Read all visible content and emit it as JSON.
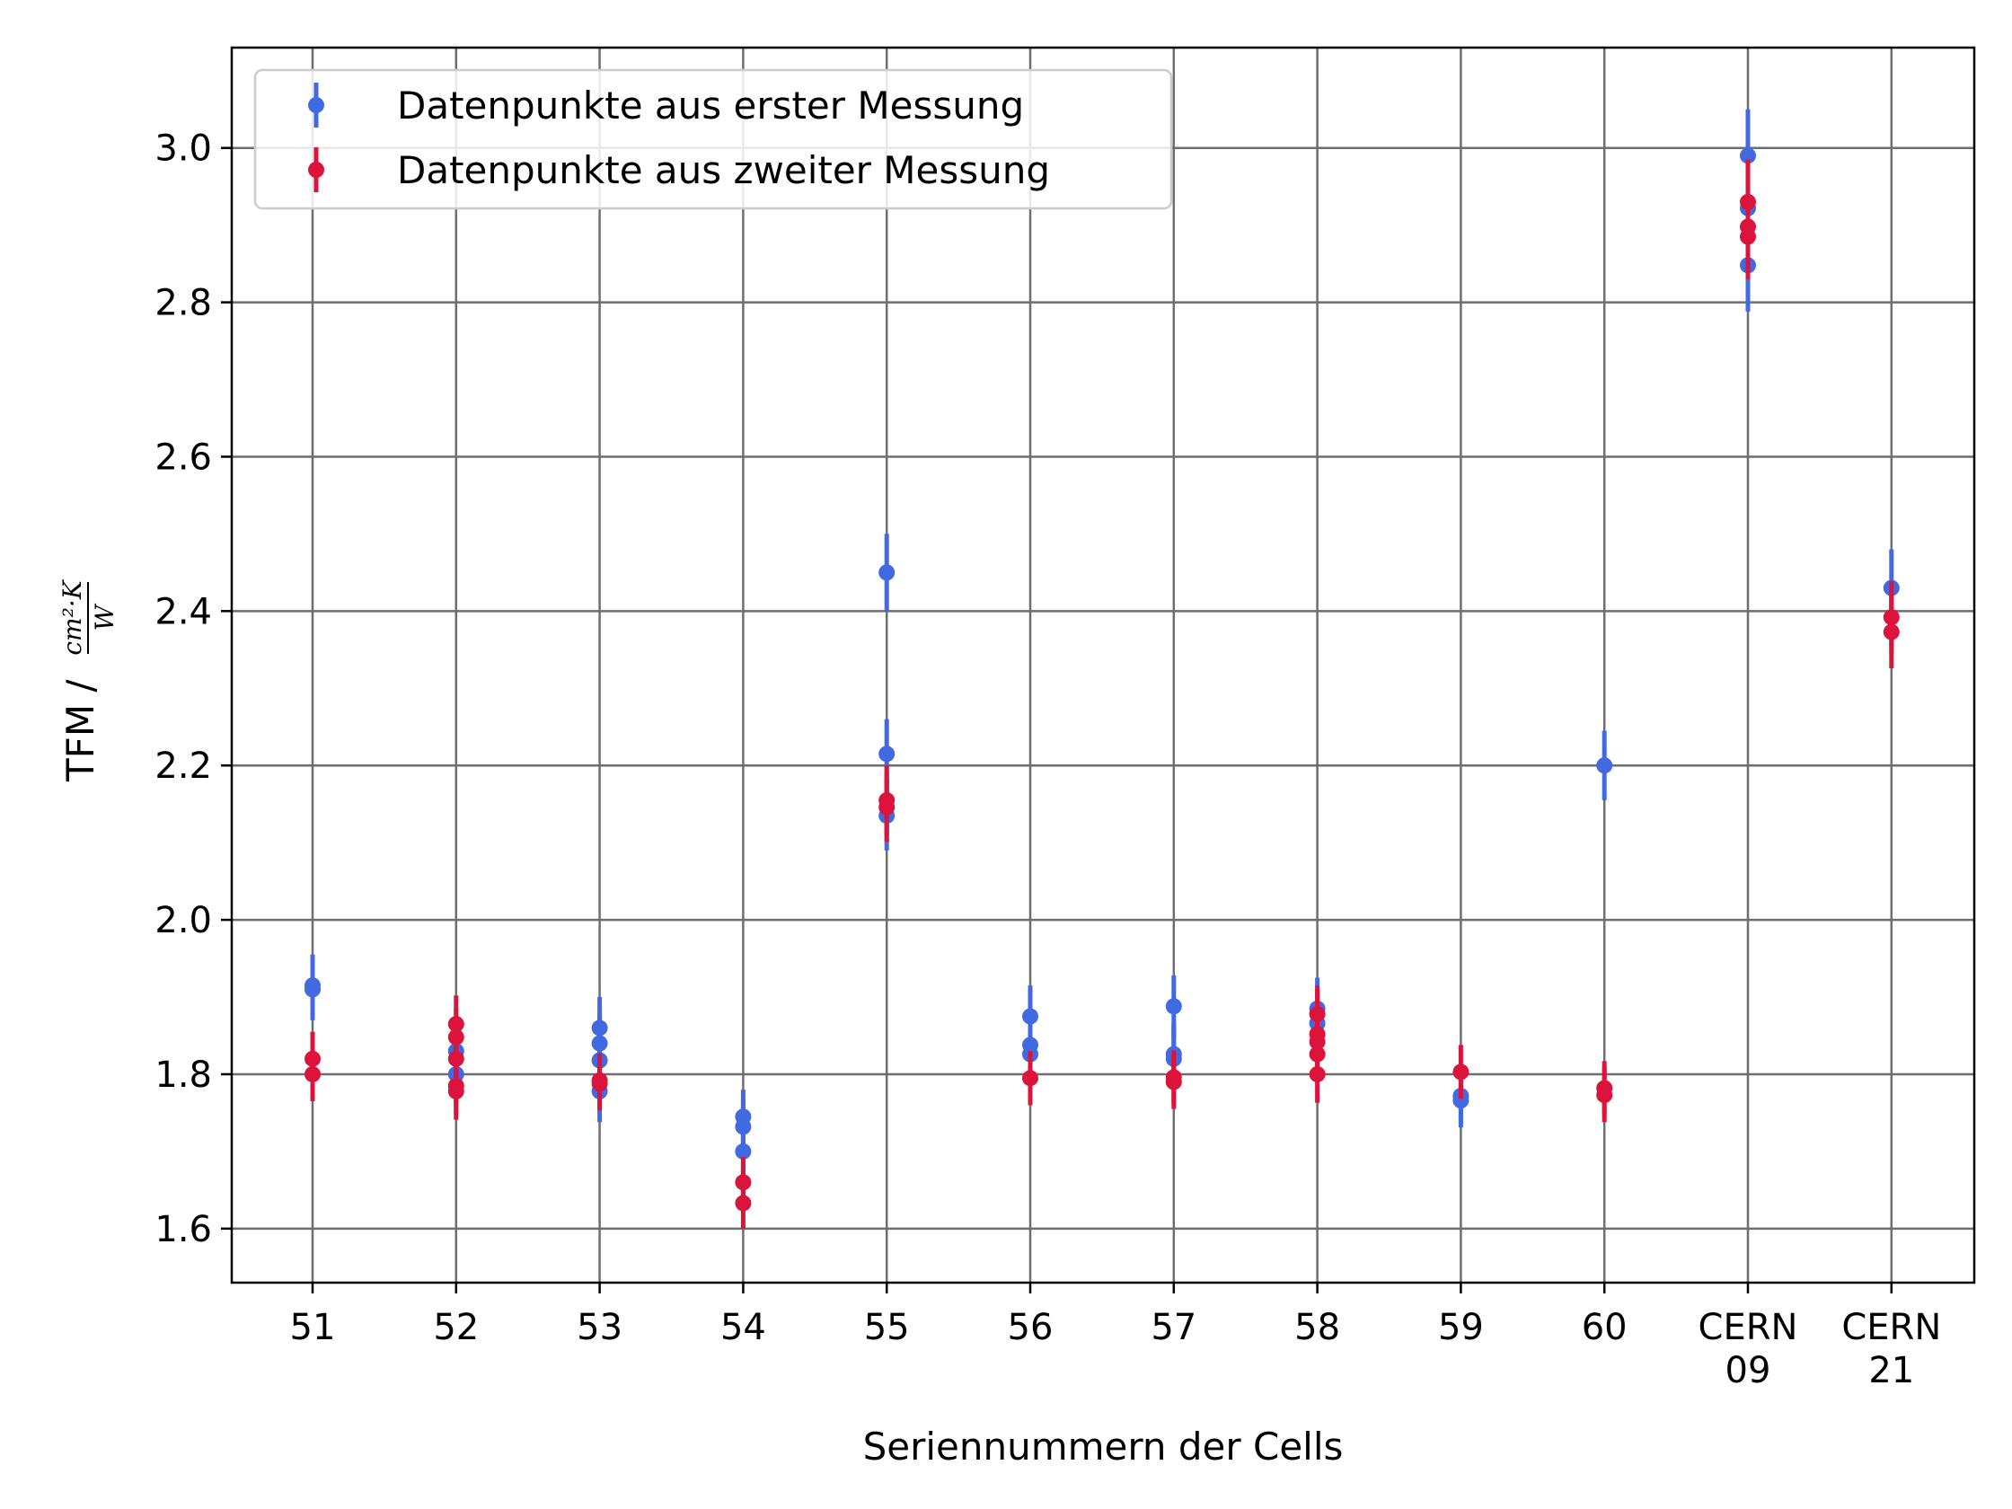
{
  "chart_data": {
    "type": "scatter",
    "xlabel": "Seriennummern der Cells",
    "ylabel": "TFM /",
    "ylabel_unit": {
      "numerator": "cm²·K",
      "denominator": "W"
    },
    "categories": [
      [
        "51"
      ],
      [
        "52"
      ],
      [
        "53"
      ],
      [
        "54"
      ],
      [
        "55"
      ],
      [
        "56"
      ],
      [
        "57"
      ],
      [
        "58"
      ],
      [
        "59"
      ],
      [
        "60"
      ],
      [
        "CERN",
        "09"
      ],
      [
        "CERN",
        "21"
      ]
    ],
    "ylim": [
      1.53,
      3.13
    ],
    "yticks": [
      "1.6",
      "1.8",
      "2.0",
      "2.2",
      "2.4",
      "2.6",
      "2.8",
      "3.0"
    ],
    "grid": true,
    "legend_position": "upper-left",
    "series": [
      {
        "name": "Datenpunkte aus erster Messung",
        "color": "#4169e1",
        "points": [
          {
            "x": 0,
            "y": 1.91,
            "err": 0.04
          },
          {
            "x": 0,
            "y": 1.915,
            "err": 0.04
          },
          {
            "x": 1,
            "y": 1.83,
            "err": 0.04
          },
          {
            "x": 1,
            "y": 1.8,
            "err": 0.04
          },
          {
            "x": 2,
            "y": 1.86,
            "err": 0.04
          },
          {
            "x": 2,
            "y": 1.84,
            "err": 0.04
          },
          {
            "x": 2,
            "y": 1.818,
            "err": 0.04
          },
          {
            "x": 2,
            "y": 1.778,
            "err": 0.04
          },
          {
            "x": 3,
            "y": 1.745,
            "err": 0.035
          },
          {
            "x": 3,
            "y": 1.732,
            "err": 0.035
          },
          {
            "x": 3,
            "y": 1.7,
            "err": 0.035
          },
          {
            "x": 4,
            "y": 2.45,
            "err": 0.05
          },
          {
            "x": 4,
            "y": 2.215,
            "err": 0.045
          },
          {
            "x": 4,
            "y": 2.135,
            "err": 0.045
          },
          {
            "x": 5,
            "y": 1.875,
            "err": 0.04
          },
          {
            "x": 5,
            "y": 1.838,
            "err": 0.04
          },
          {
            "x": 5,
            "y": 1.826,
            "err": 0.04
          },
          {
            "x": 6,
            "y": 1.888,
            "err": 0.04
          },
          {
            "x": 6,
            "y": 1.826,
            "err": 0.04
          },
          {
            "x": 6,
            "y": 1.82,
            "err": 0.04
          },
          {
            "x": 7,
            "y": 1.885,
            "err": 0.04
          },
          {
            "x": 7,
            "y": 1.866,
            "err": 0.04
          },
          {
            "x": 8,
            "y": 1.772,
            "err": 0.035
          },
          {
            "x": 8,
            "y": 1.766,
            "err": 0.035
          },
          {
            "x": 9,
            "y": 2.2,
            "err": 0.045
          },
          {
            "x": 10,
            "y": 2.99,
            "err": 0.06
          },
          {
            "x": 10,
            "y": 2.922,
            "err": 0.06
          },
          {
            "x": 10,
            "y": 2.848,
            "err": 0.06
          },
          {
            "x": 11,
            "y": 2.43,
            "err": 0.05
          }
        ]
      },
      {
        "name": "Datenpunkte aus zweiter Messung",
        "color": "#dc143c",
        "points": [
          {
            "x": 0,
            "y": 1.82,
            "err": 0.035
          },
          {
            "x": 0,
            "y": 1.8,
            "err": 0.035
          },
          {
            "x": 1,
            "y": 1.865,
            "err": 0.037
          },
          {
            "x": 1,
            "y": 1.848,
            "err": 0.037
          },
          {
            "x": 1,
            "y": 1.82,
            "err": 0.037
          },
          {
            "x": 1,
            "y": 1.785,
            "err": 0.037
          },
          {
            "x": 1,
            "y": 1.778,
            "err": 0.037
          },
          {
            "x": 2,
            "y": 1.792,
            "err": 0.035
          },
          {
            "x": 2,
            "y": 1.788,
            "err": 0.035
          },
          {
            "x": 3,
            "y": 1.66,
            "err": 0.033
          },
          {
            "x": 3,
            "y": 1.633,
            "err": 0.033
          },
          {
            "x": 4,
            "y": 2.155,
            "err": 0.045
          },
          {
            "x": 4,
            "y": 2.146,
            "err": 0.045
          },
          {
            "x": 5,
            "y": 1.795,
            "err": 0.035
          },
          {
            "x": 6,
            "y": 1.796,
            "err": 0.035
          },
          {
            "x": 6,
            "y": 1.79,
            "err": 0.035
          },
          {
            "x": 7,
            "y": 1.878,
            "err": 0.037
          },
          {
            "x": 7,
            "y": 1.852,
            "err": 0.037
          },
          {
            "x": 7,
            "y": 1.842,
            "err": 0.037
          },
          {
            "x": 7,
            "y": 1.826,
            "err": 0.037
          },
          {
            "x": 7,
            "y": 1.8,
            "err": 0.037
          },
          {
            "x": 8,
            "y": 1.803,
            "err": 0.035
          },
          {
            "x": 9,
            "y": 1.782,
            "err": 0.035
          },
          {
            "x": 9,
            "y": 1.773,
            "err": 0.035
          },
          {
            "x": 10,
            "y": 2.93,
            "err": 0.055
          },
          {
            "x": 10,
            "y": 2.898,
            "err": 0.055
          },
          {
            "x": 10,
            "y": 2.885,
            "err": 0.055
          },
          {
            "x": 11,
            "y": 2.392,
            "err": 0.047
          },
          {
            "x": 11,
            "y": 2.373,
            "err": 0.047
          }
        ]
      }
    ]
  }
}
